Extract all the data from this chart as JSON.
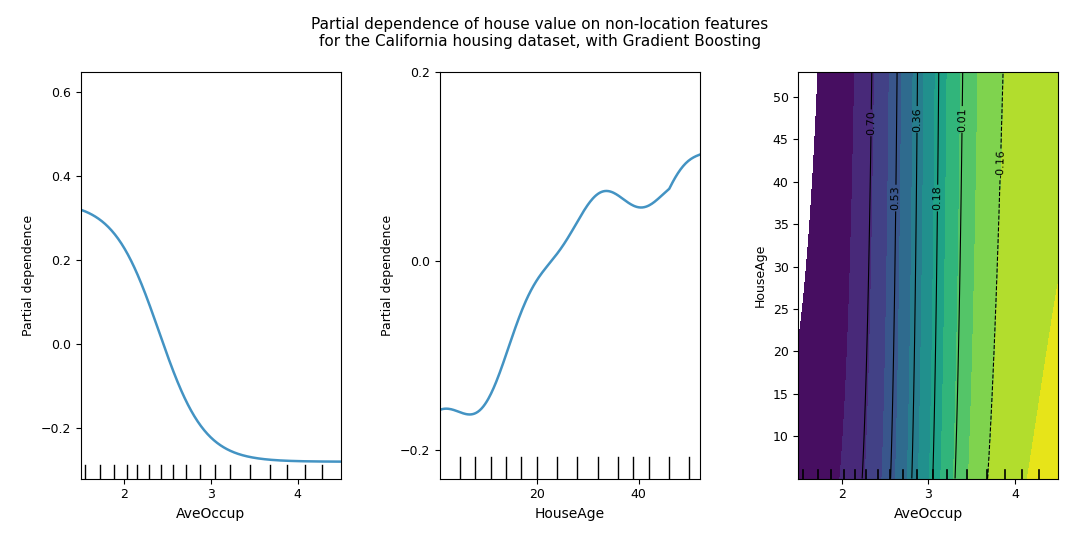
{
  "title_line1": "Partial dependence of house value on non-location features",
  "title_line2": "for the California housing dataset, with Gradient Boosting",
  "plot1_xlabel": "AveOccup",
  "plot1_ylabel": "Partial dependence",
  "plot1_xlim": [
    1.5,
    4.5
  ],
  "plot1_ylim": [
    -0.32,
    0.65
  ],
  "plot1_yticks": [
    -0.2,
    0.0,
    0.2,
    0.4,
    0.6
  ],
  "plot1_xticks": [
    2,
    3,
    4
  ],
  "plot2_xlabel": "HouseAge",
  "plot2_ylabel": "Partial dependence",
  "plot2_xlim": [
    1,
    52
  ],
  "plot2_ylim": [
    -0.23,
    0.18
  ],
  "plot2_yticks": [
    -0.2,
    0.0,
    0.2
  ],
  "plot2_xticks": [
    20,
    40
  ],
  "plot3_xlabel": "AveOccup",
  "plot3_ylabel": "HouseAge",
  "plot3_xlim": [
    1.5,
    4.5
  ],
  "plot3_ylim": [
    5,
    53
  ],
  "plot3_yticks": [
    10,
    15,
    20,
    25,
    30,
    35,
    40,
    45,
    50
  ],
  "plot3_xticks": [
    2,
    3,
    4
  ],
  "contour_label_levels": [
    -0.16,
    0.01,
    0.18,
    0.36,
    0.53,
    0.7
  ],
  "contour_fill_min": -0.35,
  "contour_fill_max": 0.88,
  "line_color": "#4393c3",
  "bg_color": "#ffffff",
  "rug_color": "#000000",
  "rug1": [
    1.55,
    1.72,
    1.88,
    2.03,
    2.15,
    2.28,
    2.42,
    2.56,
    2.71,
    2.87,
    3.05,
    3.22,
    3.45,
    3.68,
    3.88,
    4.08,
    4.28
  ],
  "rug2": [
    5,
    8,
    11,
    14,
    17,
    20,
    24,
    28,
    32,
    36,
    39,
    42,
    46,
    50
  ],
  "rug3": [
    1.55,
    1.72,
    1.88,
    2.03,
    2.15,
    2.28,
    2.42,
    2.56,
    2.71,
    2.87,
    3.05,
    3.22,
    3.45,
    3.68,
    3.88,
    4.08,
    4.28
  ]
}
